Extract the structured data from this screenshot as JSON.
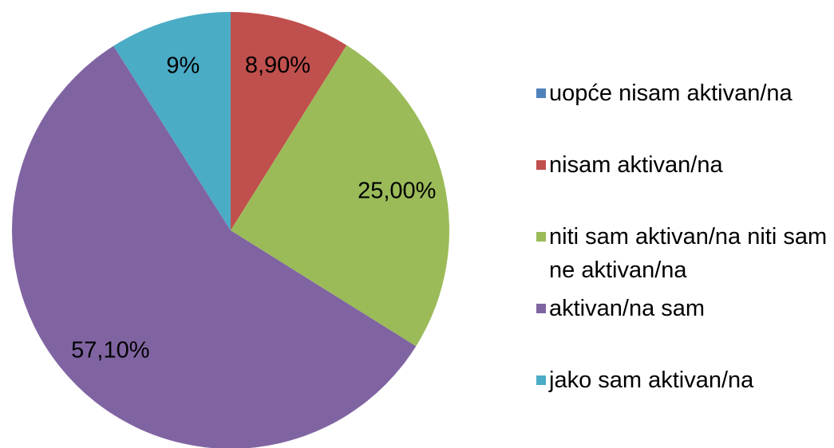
{
  "chart_data": {
    "type": "pie",
    "categories": [
      "uopće nisam aktivan/na",
      "nisam aktivan/na",
      "niti sam aktivan/na niti sam ne aktivan/na",
      "aktivan/na sam",
      "jako sam aktivan/na"
    ],
    "values": [
      0,
      8.9,
      25,
      57.1,
      9
    ],
    "value_labels": [
      null,
      "8,90%",
      "25,00%",
      "57,10%",
      "9%"
    ],
    "colors": [
      "#4f81bd",
      "#c0504d",
      "#9bbb59",
      "#8064a2",
      "#4bacc6"
    ],
    "legend": "right"
  }
}
